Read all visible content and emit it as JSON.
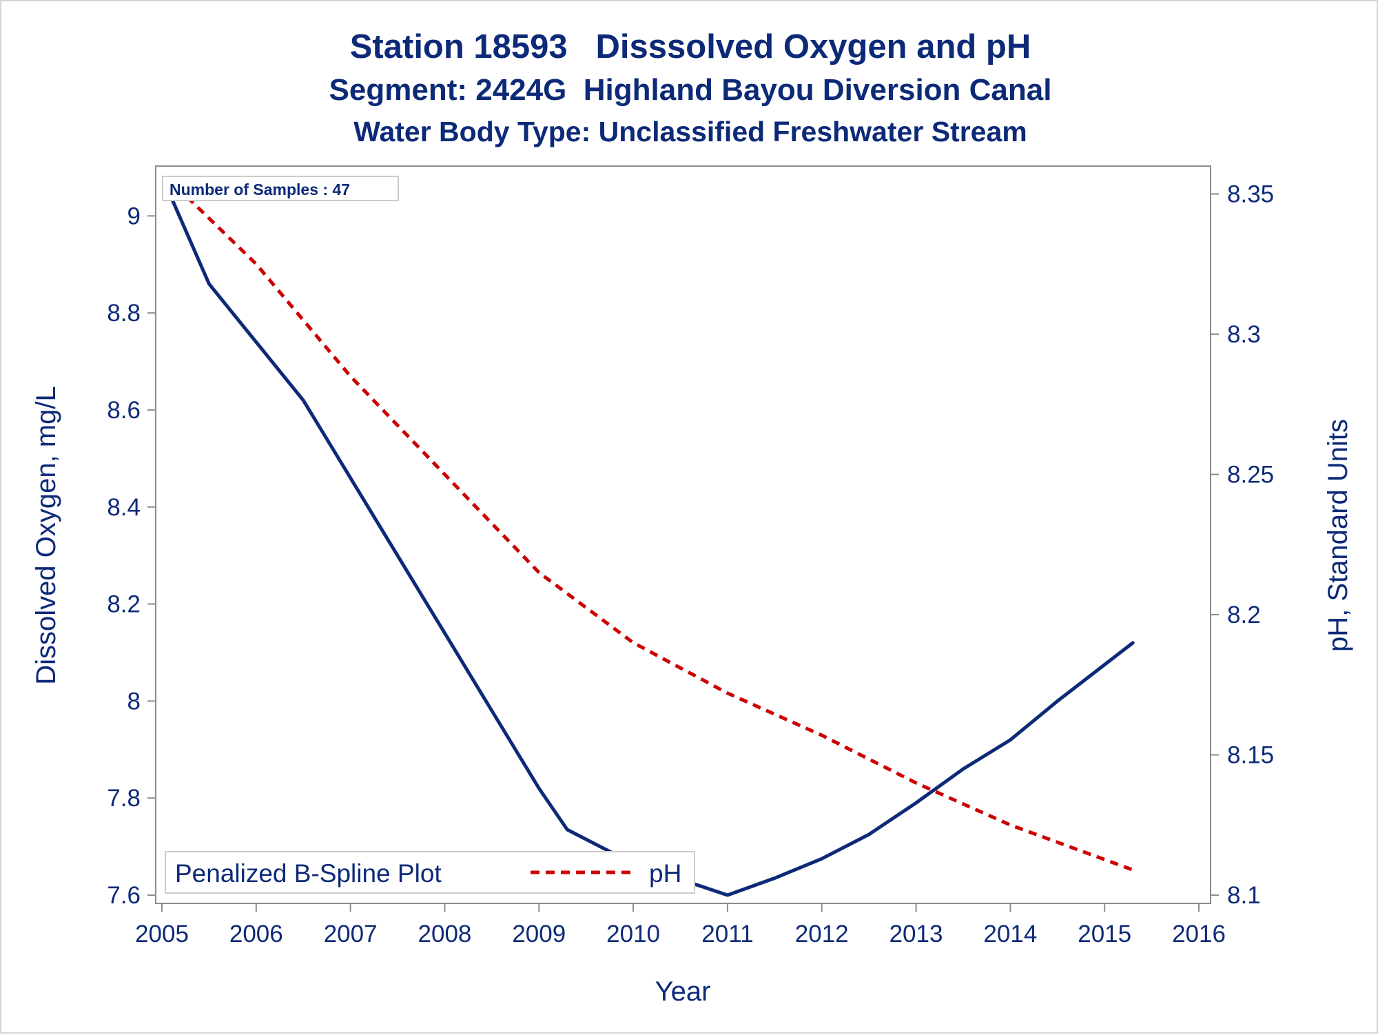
{
  "chart_data": {
    "type": "line",
    "title": "Station 18593   Disssolved Oxygen and pH",
    "subtitle": "Segment: 2424G  Highland Bayou Diversion Canal",
    "subtitle2": "Water Body Type: Unclassified Freshwater Stream",
    "xlabel": "Year",
    "ylabel": "Dissolved Oxygen, mg/L",
    "y2label": "pH, Standard Units",
    "xlim": [
      2005,
      2016
    ],
    "ylim": [
      7.6,
      9.08
    ],
    "y2lim": [
      8.1,
      8.356
    ],
    "xticks": [
      "2005",
      "2006",
      "2007",
      "2008",
      "2009",
      "2010",
      "2011",
      "2012",
      "2013",
      "2014",
      "2015",
      "2016"
    ],
    "yticks": [
      "7.6",
      "7.8",
      "8",
      "8.2",
      "8.4",
      "8.6",
      "8.8",
      "9"
    ],
    "y2ticks": [
      "8.1",
      "8.15",
      "8.2",
      "8.25",
      "8.3",
      "8.35"
    ],
    "annotation": "Number of Samples : 47",
    "legend": {
      "title": "Penalized B-Spline Plot",
      "entries": [
        "pH"
      ],
      "placement": "bottom-left"
    },
    "grid": false,
    "series": [
      {
        "axis": "left",
        "color": "#0d2a78",
        "style": "solid",
        "points": [
          [
            2005.05,
            9.06
          ],
          [
            2005.5,
            8.86
          ],
          [
            2006.0,
            8.74
          ],
          [
            2006.5,
            8.62
          ],
          [
            2007.0,
            8.46
          ],
          [
            2007.5,
            8.3
          ],
          [
            2008.0,
            8.14
          ],
          [
            2008.5,
            7.98
          ],
          [
            2009.0,
            7.82
          ],
          [
            2009.3,
            7.735
          ],
          [
            2010.0,
            7.665
          ],
          [
            2011.0,
            7.6
          ],
          [
            2011.5,
            7.635
          ],
          [
            2012.0,
            7.675
          ],
          [
            2012.5,
            7.725
          ],
          [
            2013.0,
            7.79
          ],
          [
            2013.5,
            7.86
          ],
          [
            2014.0,
            7.92
          ],
          [
            2014.5,
            8.0
          ],
          [
            2015.3,
            8.12
          ]
        ]
      },
      {
        "name": "pH",
        "axis": "right",
        "color": "#cc0000",
        "style": "dashed",
        "points": [
          [
            2005.05,
            8.356
          ],
          [
            2006.0,
            8.325
          ],
          [
            2007.0,
            8.285
          ],
          [
            2008.0,
            8.25
          ],
          [
            2009.0,
            8.215
          ],
          [
            2010.0,
            8.19
          ],
          [
            2011.0,
            8.172
          ],
          [
            2012.0,
            8.157
          ],
          [
            2013.0,
            8.14
          ],
          [
            2014.0,
            8.125
          ],
          [
            2015.3,
            8.109
          ]
        ]
      }
    ]
  }
}
